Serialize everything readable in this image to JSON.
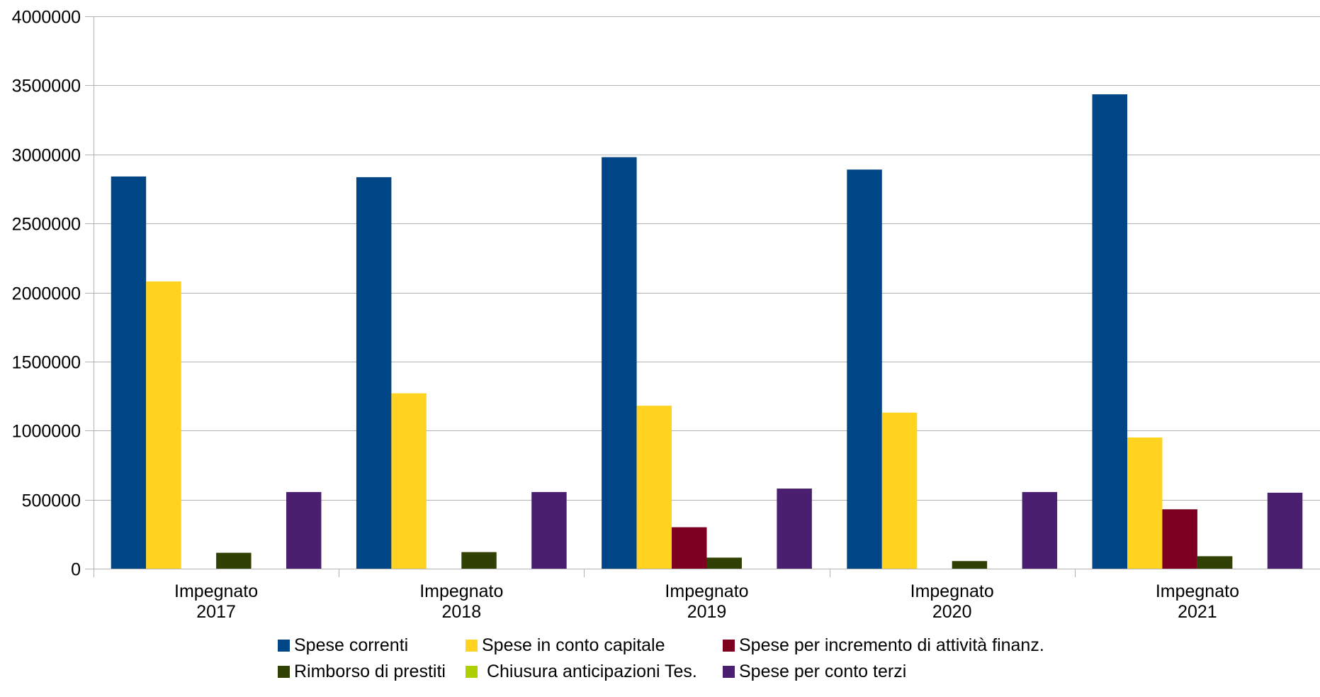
{
  "chart_data": {
    "type": "bar",
    "title": "",
    "xlabel": "",
    "ylabel": "",
    "ylim": [
      0,
      4000000
    ],
    "yticks": [
      0,
      500000,
      1000000,
      1500000,
      2000000,
      2500000,
      3000000,
      3500000,
      4000000
    ],
    "grid": true,
    "legend_position": "bottom",
    "categories": [
      [
        "Impegnato",
        "2017"
      ],
      [
        "Impegnato",
        "2018"
      ],
      [
        "Impegnato",
        "2019"
      ],
      [
        "Impegnato",
        "2020"
      ],
      [
        "Impegnato",
        "2021"
      ]
    ],
    "series": [
      {
        "name": "Spese correnti",
        "color": "#004586",
        "values": [
          2840000,
          2835000,
          2980000,
          2890000,
          3435000
        ]
      },
      {
        "name": "Spese in conto capitale",
        "color": "#ffd320",
        "values": [
          2080000,
          1270000,
          1180000,
          1130000,
          950000
        ]
      },
      {
        "name": "Spese per incremento di attività finanz.",
        "color": "#7e0021",
        "values": [
          0,
          0,
          300000,
          0,
          430000
        ]
      },
      {
        "name": "Rimborso di prestiti",
        "color": "#314004",
        "values": [
          115000,
          120000,
          80000,
          55000,
          90000
        ]
      },
      {
        "name": "Chiusura anticipazioni Tes.",
        "color": "#aecf00",
        "values": [
          0,
          0,
          0,
          0,
          0
        ]
      },
      {
        "name": "Spese per conto terzi",
        "color": "#4b1f6f",
        "values": [
          555000,
          555000,
          580000,
          555000,
          550000
        ]
      }
    ]
  }
}
